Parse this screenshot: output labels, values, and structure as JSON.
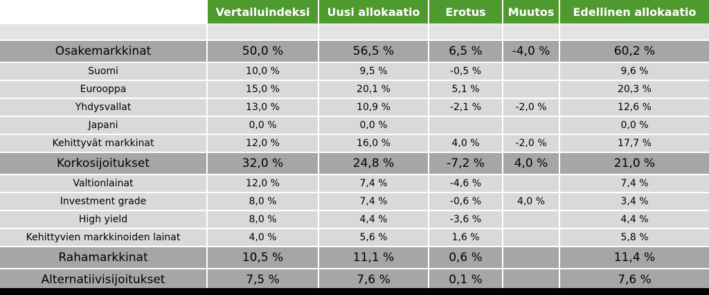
{
  "headers": [
    "",
    "Vertailuindeksi",
    "Uusi allokaatio",
    "Erotus",
    "Muutos",
    "Edellinen allokaatio"
  ],
  "rows": [
    {
      "kind": "spacer",
      "cells": [
        "",
        "",
        "",
        "",
        "",
        ""
      ]
    },
    {
      "kind": "group",
      "cells": [
        "Osakemarkkinat",
        "50,0 %",
        "56,5 %",
        "6,5 %",
        "-4,0 %",
        "60,2 %"
      ]
    },
    {
      "kind": "sub",
      "cells": [
        "Suomi",
        "10,0 %",
        "9,5 %",
        "-0,5 %",
        "",
        "9,6 %"
      ]
    },
    {
      "kind": "sub",
      "cells": [
        "Eurooppa",
        "15,0 %",
        "20,1 %",
        "5,1 %",
        "",
        "20,3 %"
      ]
    },
    {
      "kind": "sub",
      "cells": [
        "Yhdysvallat",
        "13,0 %",
        "10,9 %",
        "-2,1 %",
        "-2,0 %",
        "12,6 %"
      ]
    },
    {
      "kind": "sub",
      "cells": [
        "Japani",
        "0,0 %",
        "0,0 %",
        "",
        "",
        "0,0 %"
      ]
    },
    {
      "kind": "sub",
      "cells": [
        "Kehittyvät markkinat",
        "12,0 %",
        "16,0 %",
        "4,0 %",
        "-2,0 %",
        "17,7 %"
      ]
    },
    {
      "kind": "group",
      "cells": [
        "Korkosijoitukset",
        "32,0 %",
        "24,8 %",
        "-7,2 %",
        "4,0 %",
        "21,0 %"
      ]
    },
    {
      "kind": "sub",
      "cells": [
        "Valtionlainat",
        "12,0 %",
        "7,4 %",
        "-4,6 %",
        "",
        "7,4 %"
      ]
    },
    {
      "kind": "sub",
      "cells": [
        "Investment grade",
        "8,0 %",
        "7,4 %",
        "-0,6 %",
        "4,0 %",
        "3,4 %"
      ]
    },
    {
      "kind": "sub",
      "cells": [
        "High yield",
        "8,0 %",
        "4,4 %",
        "-3,6 %",
        "",
        "4,4 %"
      ]
    },
    {
      "kind": "sub",
      "cells": [
        "Kehittyvien markkinoiden lainat",
        "4,0 %",
        "5,6 %",
        "1,6 %",
        "",
        "5,8 %"
      ]
    },
    {
      "kind": "group",
      "cells": [
        "Rahamarkkinat",
        "10,5 %",
        "11,1 %",
        "0,6 %",
        "",
        "11,4 %"
      ]
    },
    {
      "kind": "group",
      "cells": [
        "Alternatiivisijoitukset",
        "7,5 %",
        "7,6 %",
        "0,1 %",
        "",
        "7,6 %"
      ]
    }
  ],
  "colors": {
    "header_green": "#4e9a2e",
    "group_gray": "#a6a6a6",
    "sub_gray": "#d9d9d9",
    "spacer_gray": "#e3e3e3",
    "bottom_bar": "#000000"
  }
}
